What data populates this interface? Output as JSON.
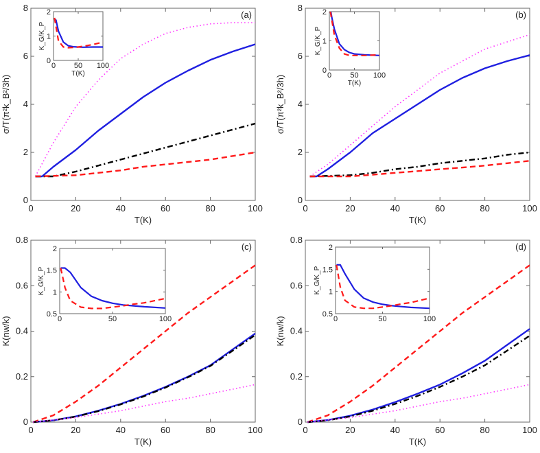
{
  "chart_data": [
    {
      "type": "line",
      "panel_label": "(a)",
      "xlabel": "T(K)",
      "ylabel": "σ/T(π²k_B²/3h)",
      "xlim": [
        0,
        100
      ],
      "ylim": [
        0,
        8
      ],
      "xticks": [
        0,
        20,
        40,
        60,
        80,
        100
      ],
      "yticks": [
        0,
        2,
        4,
        6,
        8
      ],
      "series": [
        {
          "name": "magenta-dotted",
          "color": "#ff33ff",
          "style": "dotted",
          "x": [
            2,
            10,
            20,
            30,
            40,
            50,
            60,
            70,
            80,
            90,
            100
          ],
          "y": [
            1,
            2.4,
            3.9,
            5.0,
            5.9,
            6.5,
            6.95,
            7.2,
            7.35,
            7.4,
            7.4
          ]
        },
        {
          "name": "blue-solid",
          "color": "#1f1fe0",
          "style": "solid",
          "x": [
            2,
            5,
            10,
            20,
            30,
            40,
            50,
            60,
            70,
            80,
            90,
            100
          ],
          "y": [
            1,
            1,
            1.4,
            2.1,
            2.9,
            3.6,
            4.3,
            4.9,
            5.4,
            5.85,
            6.2,
            6.5
          ]
        },
        {
          "name": "black-dashdot",
          "color": "#000000",
          "style": "dashdot",
          "x": [
            2,
            10,
            20,
            30,
            40,
            50,
            60,
            70,
            80,
            90,
            100
          ],
          "y": [
            1,
            1,
            1.2,
            1.45,
            1.7,
            1.95,
            2.2,
            2.45,
            2.7,
            2.95,
            3.2
          ]
        },
        {
          "name": "red-dashed",
          "color": "#ff1a1a",
          "style": "dashed",
          "x": [
            2,
            20,
            30,
            40,
            50,
            60,
            70,
            80,
            90,
            100
          ],
          "y": [
            1,
            1.05,
            1.15,
            1.25,
            1.4,
            1.5,
            1.6,
            1.7,
            1.85,
            2.0
          ]
        }
      ],
      "inset": {
        "xlabel": "T(K)",
        "ylabel": "K_G/K_P",
        "xlim": [
          0,
          100
        ],
        "ylim": [
          0,
          2
        ],
        "xticks": [
          0,
          50,
          100
        ],
        "yticks": [
          0,
          1,
          2
        ],
        "series": [
          {
            "name": "blue-solid",
            "color": "#1f1fe0",
            "style": "solid",
            "x": [
              2,
              5,
              10,
              20,
              30,
              40,
              50,
              60,
              80,
              100
            ],
            "y": [
              1.7,
              1.65,
              1.2,
              0.75,
              0.6,
              0.56,
              0.55,
              0.54,
              0.55,
              0.55
            ]
          },
          {
            "name": "red-dashed",
            "color": "#ff1a1a",
            "style": "dashed",
            "x": [
              2,
              10,
              20,
              30,
              40,
              50,
              60,
              80,
              100
            ],
            "y": [
              1.75,
              0.8,
              0.55,
              0.52,
              0.53,
              0.55,
              0.58,
              0.65,
              0.75
            ]
          }
        ]
      }
    },
    {
      "type": "line",
      "panel_label": "(b)",
      "xlabel": "T(K)",
      "ylabel": "σ/T(π²k_B²/3h)",
      "xlim": [
        0,
        100
      ],
      "ylim": [
        0,
        8
      ],
      "xticks": [
        0,
        20,
        40,
        60,
        80,
        100
      ],
      "yticks": [
        0,
        2,
        4,
        6,
        8
      ],
      "series": [
        {
          "name": "magenta-dotted",
          "color": "#ff33ff",
          "style": "dotted",
          "x": [
            2,
            10,
            20,
            30,
            40,
            50,
            60,
            70,
            80,
            90,
            100
          ],
          "y": [
            1,
            1.5,
            2.3,
            3.1,
            3.9,
            4.6,
            5.3,
            5.8,
            6.3,
            6.6,
            6.9
          ]
        },
        {
          "name": "blue-solid",
          "color": "#1f1fe0",
          "style": "solid",
          "x": [
            2,
            5,
            10,
            20,
            30,
            40,
            50,
            60,
            70,
            80,
            90,
            100
          ],
          "y": [
            1,
            1,
            1.3,
            2.0,
            2.8,
            3.4,
            4.0,
            4.6,
            5.1,
            5.5,
            5.8,
            6.05
          ]
        },
        {
          "name": "black-dashdot",
          "color": "#000000",
          "style": "dashdot",
          "x": [
            2,
            20,
            30,
            40,
            50,
            60,
            70,
            80,
            90,
            100
          ],
          "y": [
            1,
            1.05,
            1.15,
            1.3,
            1.4,
            1.55,
            1.65,
            1.75,
            1.9,
            2.0
          ]
        },
        {
          "name": "red-dashed",
          "color": "#ff1a1a",
          "style": "dashed",
          "x": [
            2,
            20,
            30,
            40,
            50,
            60,
            70,
            80,
            90,
            100
          ],
          "y": [
            1,
            1.0,
            1.07,
            1.15,
            1.22,
            1.3,
            1.37,
            1.45,
            1.55,
            1.65
          ]
        }
      ],
      "inset": {
        "xlabel": "T(K)",
        "ylabel": "K_G/K_P",
        "xlim": [
          0,
          100
        ],
        "ylim": [
          0,
          2
        ],
        "xticks": [
          0,
          50,
          100
        ],
        "yticks": [
          0,
          1,
          2
        ],
        "series": [
          {
            "name": "blue-solid",
            "color": "#1f1fe0",
            "style": "solid",
            "x": [
              3,
              5,
              10,
              20,
              30,
              40,
              50,
              70,
              100
            ],
            "y": [
              2.0,
              1.8,
              1.4,
              0.9,
              0.7,
              0.6,
              0.55,
              0.52,
              0.5
            ]
          },
          {
            "name": "red-dashed",
            "color": "#ff1a1a",
            "style": "dashed",
            "x": [
              2,
              10,
              20,
              30,
              40,
              50,
              70,
              100
            ],
            "y": [
              2.0,
              1.2,
              0.75,
              0.55,
              0.5,
              0.5,
              0.5,
              0.52
            ]
          }
        ]
      }
    },
    {
      "type": "line",
      "panel_label": "(c)",
      "xlabel": "T(K)",
      "ylabel": "K(nw/k)",
      "xlim": [
        0,
        100
      ],
      "ylim": [
        0,
        0.8
      ],
      "xticks": [
        0,
        20,
        40,
        60,
        80,
        100
      ],
      "yticks": [
        0,
        0.2,
        0.4,
        0.6,
        0.8
      ],
      "series": [
        {
          "name": "red-dashed",
          "color": "#ff1a1a",
          "style": "dashed",
          "x": [
            1,
            10,
            20,
            30,
            40,
            50,
            60,
            70,
            80,
            90,
            100
          ],
          "y": [
            0,
            0.03,
            0.09,
            0.16,
            0.24,
            0.32,
            0.4,
            0.48,
            0.55,
            0.62,
            0.69
          ]
        },
        {
          "name": "blue-solid",
          "color": "#1f1fe0",
          "style": "solid",
          "x": [
            1,
            10,
            20,
            30,
            40,
            50,
            60,
            70,
            80,
            90,
            100
          ],
          "y": [
            0,
            0.008,
            0.025,
            0.05,
            0.08,
            0.115,
            0.155,
            0.2,
            0.25,
            0.32,
            0.39
          ]
        },
        {
          "name": "black-dashdot",
          "color": "#000000",
          "style": "dashdot",
          "x": [
            1,
            10,
            20,
            30,
            40,
            50,
            60,
            70,
            80,
            90,
            100
          ],
          "y": [
            0,
            0.008,
            0.024,
            0.048,
            0.078,
            0.112,
            0.152,
            0.197,
            0.247,
            0.315,
            0.383
          ]
        },
        {
          "name": "magenta-dotted",
          "color": "#ff33ff",
          "style": "dotted",
          "x": [
            1,
            20,
            30,
            40,
            50,
            60,
            70,
            80,
            90,
            100
          ],
          "y": [
            0,
            0.02,
            0.035,
            0.05,
            0.07,
            0.09,
            0.105,
            0.125,
            0.145,
            0.165
          ]
        }
      ],
      "inset": {
        "xlabel": "",
        "ylabel": "K_G/K_P",
        "xlim": [
          0,
          100
        ],
        "ylim": [
          0.5,
          2
        ],
        "xticks": [
          0,
          50,
          100
        ],
        "yticks": [
          0.5,
          1,
          1.5,
          2
        ],
        "series": [
          {
            "name": "blue-solid",
            "color": "#1f1fe0",
            "style": "solid",
            "x": [
              1,
              5,
              10,
              20,
              30,
              40,
              50,
              60,
              70,
              80,
              100
            ],
            "y": [
              1.55,
              1.55,
              1.45,
              1.1,
              0.9,
              0.8,
              0.74,
              0.7,
              0.68,
              0.66,
              0.63
            ]
          },
          {
            "name": "red-dashed",
            "color": "#ff1a1a",
            "style": "dashed",
            "x": [
              1,
              5,
              10,
              20,
              30,
              40,
              50,
              60,
              70,
              80,
              100
            ],
            "y": [
              1.55,
              1.1,
              0.8,
              0.65,
              0.62,
              0.62,
              0.65,
              0.68,
              0.72,
              0.75,
              0.85
            ]
          }
        ]
      }
    },
    {
      "type": "line",
      "panel_label": "(d)",
      "xlabel": "T(K)",
      "ylabel": "K(nw/k)",
      "xlim": [
        0,
        100
      ],
      "ylim": [
        0,
        0.8
      ],
      "xticks": [
        0,
        20,
        40,
        60,
        80,
        100
      ],
      "yticks": [
        0,
        0.2,
        0.4,
        0.6,
        0.8
      ],
      "series": [
        {
          "name": "red-dashed",
          "color": "#ff1a1a",
          "style": "dashed",
          "x": [
            1,
            10,
            20,
            30,
            40,
            50,
            60,
            70,
            80,
            90,
            100
          ],
          "y": [
            0,
            0.03,
            0.09,
            0.16,
            0.24,
            0.32,
            0.4,
            0.48,
            0.55,
            0.62,
            0.69
          ]
        },
        {
          "name": "blue-solid",
          "color": "#1f1fe0",
          "style": "solid",
          "x": [
            1,
            10,
            20,
            30,
            40,
            50,
            60,
            70,
            80,
            90,
            100
          ],
          "y": [
            0,
            0.009,
            0.028,
            0.055,
            0.088,
            0.125,
            0.165,
            0.215,
            0.27,
            0.34,
            0.41
          ]
        },
        {
          "name": "black-dashdot",
          "color": "#000000",
          "style": "dashdot",
          "x": [
            1,
            10,
            20,
            30,
            40,
            50,
            60,
            70,
            80,
            90,
            100
          ],
          "y": [
            0,
            0.008,
            0.025,
            0.05,
            0.08,
            0.115,
            0.155,
            0.2,
            0.25,
            0.315,
            0.38
          ]
        },
        {
          "name": "magenta-dotted",
          "color": "#ff33ff",
          "style": "dotted",
          "x": [
            1,
            20,
            30,
            40,
            50,
            60,
            70,
            80,
            90,
            100
          ],
          "y": [
            0,
            0.02,
            0.035,
            0.05,
            0.07,
            0.09,
            0.105,
            0.125,
            0.145,
            0.165
          ]
        }
      ],
      "inset": {
        "xlabel": "",
        "ylabel": "K_G/K_P",
        "xlim": [
          0,
          100
        ],
        "ylim": [
          0.5,
          2
        ],
        "xticks": [
          0,
          50,
          100
        ],
        "yticks": [
          0.5,
          1,
          1.5,
          2
        ],
        "series": [
          {
            "name": "blue-solid",
            "color": "#1f1fe0",
            "style": "solid",
            "x": [
              1,
              5,
              10,
              20,
              30,
              40,
              50,
              60,
              70,
              80,
              100
            ],
            "y": [
              1.6,
              1.6,
              1.4,
              1.05,
              0.85,
              0.76,
              0.71,
              0.68,
              0.66,
              0.64,
              0.62
            ]
          },
          {
            "name": "red-dashed",
            "color": "#ff1a1a",
            "style": "dashed",
            "x": [
              1,
              5,
              10,
              20,
              30,
              40,
              50,
              60,
              70,
              80,
              100
            ],
            "y": [
              1.6,
              1.1,
              0.8,
              0.65,
              0.62,
              0.62,
              0.65,
              0.68,
              0.72,
              0.75,
              0.85
            ]
          }
        ]
      }
    }
  ]
}
